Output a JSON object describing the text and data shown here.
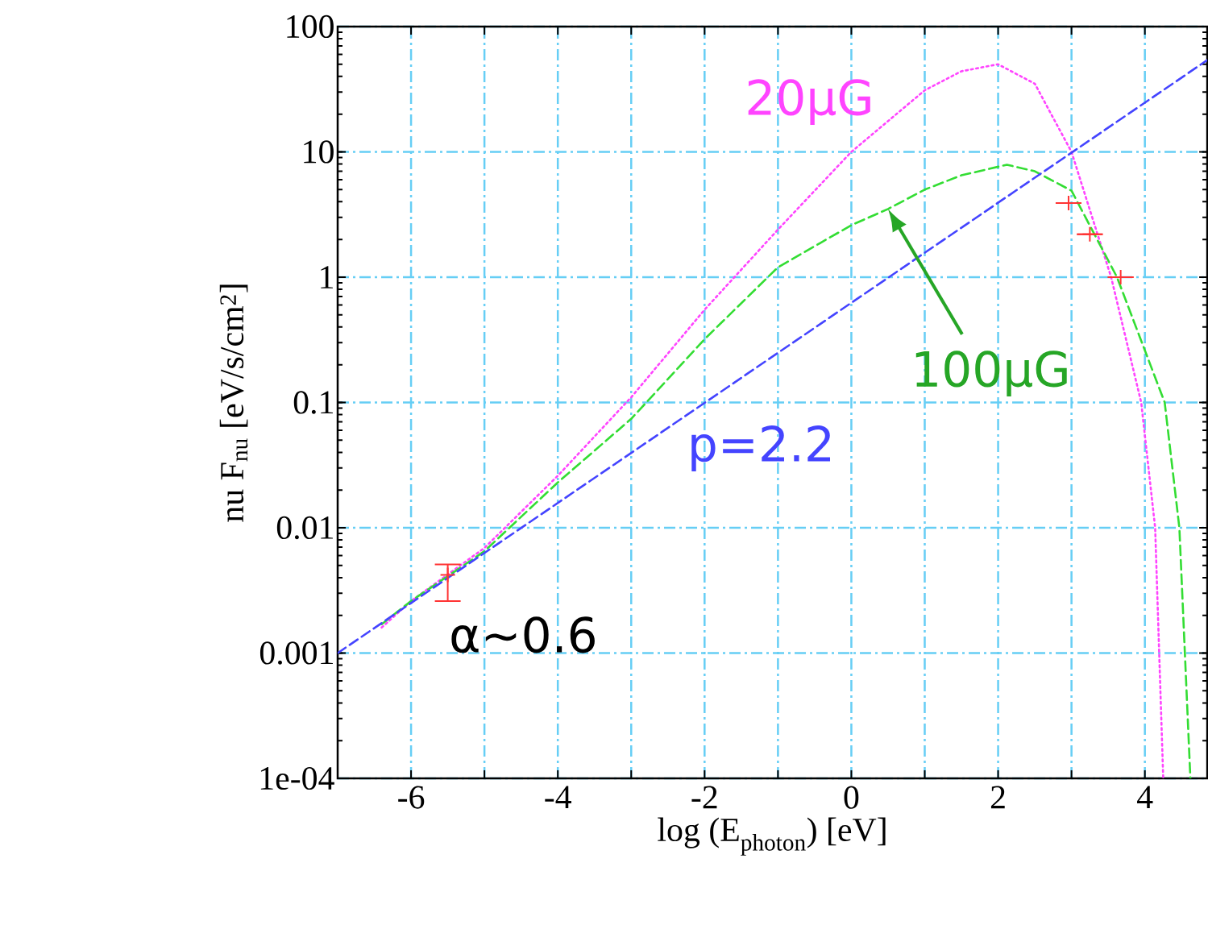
{
  "chart_data": {
    "type": "line",
    "xlabel": "log (E$_{photon}$) [eV]",
    "ylabel": "nu F$_{nu}$ [eV/s/cm$^{2}$]",
    "log": "y",
    "xlim": [
      -7,
      4.85
    ],
    "ylim": [
      0.0001,
      100
    ],
    "xticks": [
      -6,
      {
        "value": -5,
        "label": null
      },
      -4,
      {
        "value": -3,
        "label": null
      },
      -2,
      {
        "value": -1,
        "label": null
      },
      0,
      {
        "value": 1,
        "label": null
      },
      2,
      {
        "value": 3,
        "label": null
      },
      4
    ],
    "yticks": [
      {
        "value": 0.0001,
        "label": "1e-04"
      },
      0.001,
      0.01,
      0.1,
      1,
      10,
      100
    ],
    "grid": true,
    "series": [
      {
        "name": "20μG",
        "color": "#ff44ff",
        "line_style": "dotted",
        "marker": "none",
        "x": [
          -6.4,
          -6,
          -5,
          -4,
          -3,
          -2,
          -1,
          0,
          1,
          1.5,
          2,
          2.5,
          3,
          3.54,
          3.95,
          4.14,
          4.25
        ],
        "values": [
          0.0016,
          0.0026,
          0.0069,
          0.026,
          0.11,
          0.55,
          2.4,
          10,
          31,
          44,
          50,
          35,
          10,
          1,
          0.1,
          0.01,
          0.0001
        ]
      },
      {
        "name": "100μG",
        "color": "#33dd33",
        "line_style": "dashed",
        "marker": "none",
        "x": [
          -6.4,
          -6,
          -5,
          -4,
          -3,
          -2,
          -1,
          0,
          0.5,
          1,
          1.5,
          2.12,
          2.5,
          3,
          3.62,
          4.27,
          4.47,
          4.62
        ],
        "values": [
          0.0017,
          0.0026,
          0.0065,
          0.023,
          0.074,
          0.32,
          1.2,
          2.6,
          3.5,
          5,
          6.5,
          7.9,
          7.0,
          4.9,
          1,
          0.1,
          0.01,
          0.0001
        ]
      },
      {
        "name": "p=2.2",
        "color": "#4444ff",
        "line_style": "dashed",
        "marker": "none",
        "x": [
          -7,
          4.85
        ],
        "values": [
          0.001,
          54
        ]
      },
      {
        "type": "scatter",
        "color": "#ff3333",
        "marker": "cross",
        "x": [
          -5.5,
          2.96,
          3.25,
          3.67
        ],
        "values": [
          0.0042,
          3.9,
          2.2,
          1.0
        ],
        "errors": [
          [
            0.0026,
            0.0051
          ],
          null,
          null,
          null
        ]
      }
    ],
    "annotations": [
      "α~0.6"
    ]
  }
}
